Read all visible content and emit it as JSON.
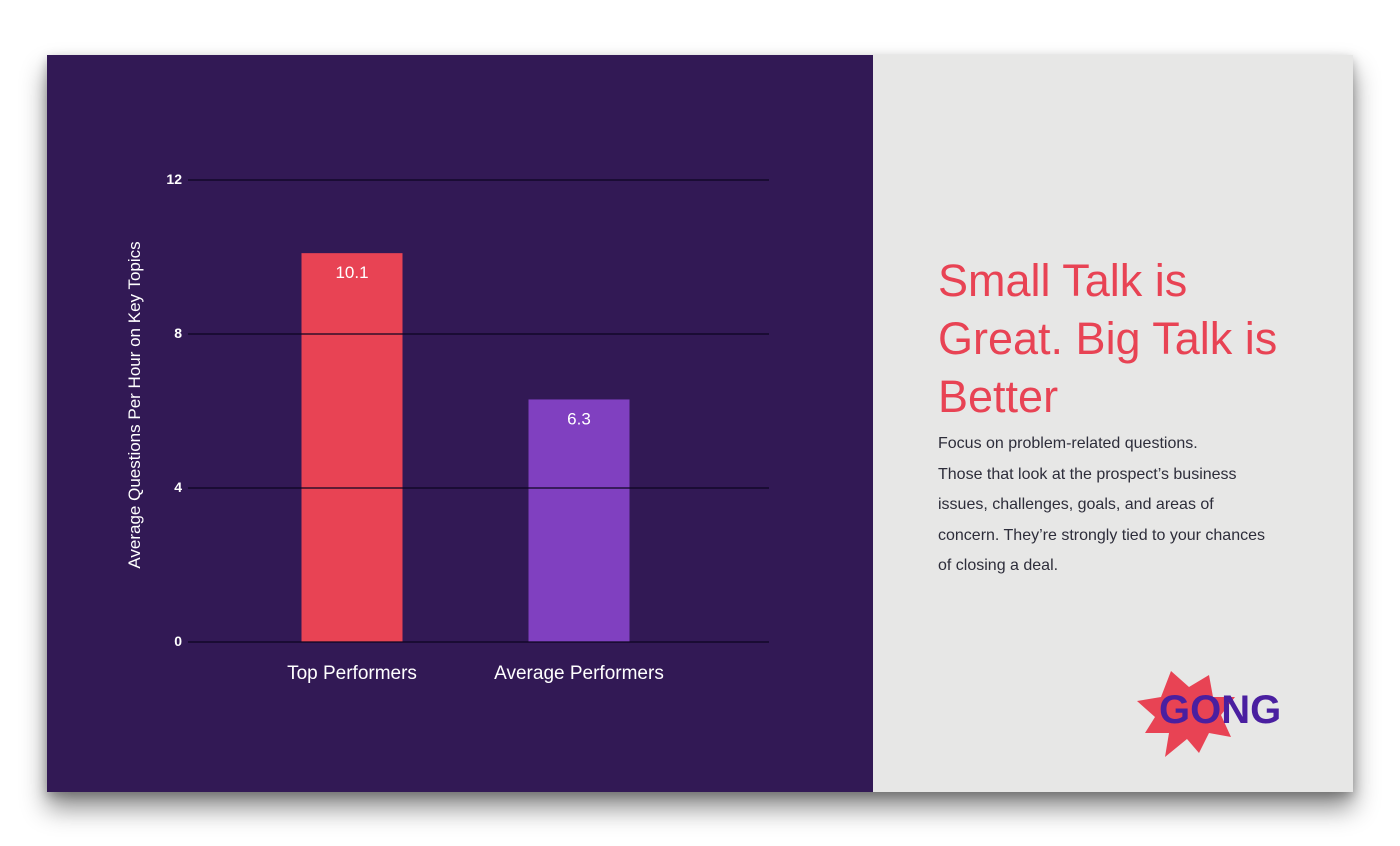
{
  "chart_data": {
    "type": "bar",
    "categories": [
      "Top Performers",
      "Average Performers"
    ],
    "values": [
      10.1,
      6.3
    ],
    "data_labels": [
      "10.1",
      "6.3"
    ],
    "bar_colors": [
      "#e84354",
      "#8040c0"
    ],
    "ylabel": "Average Questions Per Hour on Key Topics",
    "ylim": [
      0,
      12
    ],
    "yticks": [
      0,
      4,
      8,
      12
    ],
    "ytick_labels": [
      "0",
      "4",
      "8",
      "12"
    ],
    "grid": true,
    "legend": "none"
  },
  "colors": {
    "panel_bg": "#321955",
    "side_bg": "#e7e7e6",
    "accent": "#e84354",
    "purple": "#8040c0",
    "logo_text_purple": "#4a1fa0"
  },
  "text_panel": {
    "headline": "Small Talk is Great. Big Talk is Better",
    "body_lines": [
      "Focus on problem-related questions.",
      "Those that look at the prospect’s business",
      "issues, challenges, goals, and areas of",
      "concern. They’re strongly tied to your chances",
      "of closing a deal."
    ]
  },
  "logo": {
    "text_left": "GO",
    "text_right": "NG"
  }
}
